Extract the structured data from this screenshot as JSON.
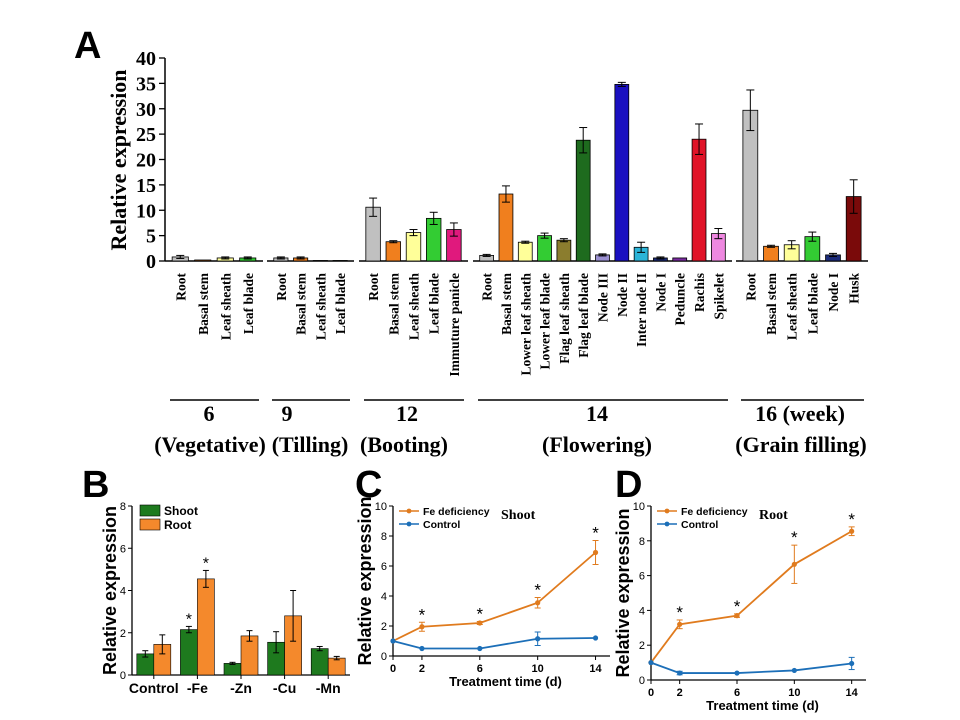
{
  "chart_data": [
    {
      "panel": "A",
      "type": "bar",
      "ylabel": "Relative expression",
      "ylim": [
        0,
        40
      ],
      "yticks": [
        0,
        5,
        10,
        15,
        20,
        25,
        30,
        35,
        40
      ],
      "groups": [
        {
          "label": "6",
          "sublabel": "(Vegetative)",
          "bars": [
            {
              "name": "Root",
              "value": 0.8,
              "err": 0.3,
              "color": "#c0c0c0"
            },
            {
              "name": "Basal stem",
              "value": 0.2,
              "err": 0.1,
              "color": "#f07f1e"
            },
            {
              "name": "Leaf sheath",
              "value": 0.6,
              "err": 0.2,
              "color": "#ffff99"
            },
            {
              "name": "Leaf blade",
              "value": 0.6,
              "err": 0.2,
              "color": "#33cc33"
            }
          ]
        },
        {
          "label": "9",
          "sublabel": "(Tilling)",
          "bars": [
            {
              "name": "Root",
              "value": 0.6,
              "err": 0.2,
              "color": "#c0c0c0"
            },
            {
              "name": "Basal stem",
              "value": 0.6,
              "err": 0.2,
              "color": "#f07f1e"
            },
            {
              "name": "Leaf sheath",
              "value": 0.1,
              "err": 0.05,
              "color": "#ffff99"
            },
            {
              "name": "Leaf blade",
              "value": 0.1,
              "err": 0.05,
              "color": "#33cc33"
            }
          ]
        },
        {
          "label": "12",
          "sublabel": "(Booting)",
          "bars": [
            {
              "name": "Root",
              "value": 10.6,
              "err": 1.8,
              "color": "#c0c0c0"
            },
            {
              "name": "Basal stem",
              "value": 3.8,
              "err": 0.2,
              "color": "#f07f1e"
            },
            {
              "name": "Leaf sheath",
              "value": 5.6,
              "err": 0.6,
              "color": "#ffff99"
            },
            {
              "name": "Leaf blade",
              "value": 8.4,
              "err": 1.2,
              "color": "#33cc33"
            },
            {
              "name": "Immuture panicle",
              "value": 6.2,
              "err": 1.3,
              "color": "#e0197d"
            }
          ]
        },
        {
          "label": "14",
          "sublabel": "(Flowering)",
          "bars": [
            {
              "name": "Root",
              "value": 1.1,
              "err": 0.2,
              "color": "#c0c0c0"
            },
            {
              "name": "Basal stem",
              "value": 13.2,
              "err": 1.6,
              "color": "#f07f1e"
            },
            {
              "name": "Lower leaf sheath",
              "value": 3.7,
              "err": 0.2,
              "color": "#ffff99"
            },
            {
              "name": "Lower leaf blade",
              "value": 5.0,
              "err": 0.5,
              "color": "#33cc33"
            },
            {
              "name": "Flag leaf sheath",
              "value": 4.1,
              "err": 0.3,
              "color": "#8b7d2e"
            },
            {
              "name": "Flag leaf blade",
              "value": 23.8,
              "err": 2.5,
              "color": "#1e6b1e"
            },
            {
              "name": "Node III",
              "value": 1.2,
              "err": 0.2,
              "color": "#9a8fd0"
            },
            {
              "name": "Node II",
              "value": 34.8,
              "err": 0.4,
              "color": "#1a10c0"
            },
            {
              "name": "Inter node II",
              "value": 2.7,
              "err": 1.0,
              "color": "#2bb4d8"
            },
            {
              "name": "Node I",
              "value": 0.6,
              "err": 0.2,
              "color": "#1b2a78"
            },
            {
              "name": "Peduncle",
              "value": 0.6,
              "err": 0.1,
              "color": "#7a2aa0"
            },
            {
              "name": "Rachis",
              "value": 24.0,
              "err": 3.0,
              "color": "#e01428"
            },
            {
              "name": "Spikelet",
              "value": 5.4,
              "err": 1.0,
              "color": "#ee88e0"
            }
          ]
        },
        {
          "label": "16 (week)",
          "sublabel": "(Grain filling)",
          "bars": [
            {
              "name": "Root",
              "value": 29.7,
              "err": 4.0,
              "color": "#c0c0c0"
            },
            {
              "name": "Basal stem",
              "value": 2.9,
              "err": 0.2,
              "color": "#f07f1e"
            },
            {
              "name": "Leaf sheath",
              "value": 3.2,
              "err": 0.8,
              "color": "#ffff99"
            },
            {
              "name": "Leaf blade",
              "value": 4.8,
              "err": 0.9,
              "color": "#33cc33"
            },
            {
              "name": "Node I",
              "value": 1.2,
              "err": 0.3,
              "color": "#1b2a78"
            },
            {
              "name": "Husk",
              "value": 12.7,
              "err": 3.3,
              "color": "#7a0a0a"
            }
          ]
        }
      ]
    },
    {
      "panel": "B",
      "type": "bar",
      "ylabel": "Relative expression",
      "ylim": [
        0,
        8
      ],
      "yticks": [
        0,
        2,
        4,
        6,
        8
      ],
      "categories": [
        "Control",
        "-Fe",
        "-Zn",
        "-Cu",
        "-Mn"
      ],
      "legend": "top-left",
      "series": [
        {
          "name": "Shoot",
          "color": "#1e7a1e",
          "values": [
            1.0,
            2.15,
            0.55,
            1.55,
            1.25
          ],
          "err": [
            0.15,
            0.15,
            0.05,
            0.5,
            0.1
          ],
          "stars": [
            false,
            true,
            false,
            false,
            false
          ]
        },
        {
          "name": "Root",
          "color": "#f4892c",
          "values": [
            1.45,
            4.55,
            1.85,
            2.8,
            0.8
          ],
          "err": [
            0.45,
            0.4,
            0.25,
            1.2,
            0.08
          ],
          "stars": [
            false,
            true,
            false,
            false,
            false
          ]
        }
      ]
    },
    {
      "panel": "C",
      "type": "line",
      "title": "Shoot",
      "xlabel": "Treatment time (d)",
      "ylabel": "Relative expression",
      "x": [
        0,
        2,
        6,
        10,
        14
      ],
      "xlim": [
        0,
        15
      ],
      "xticks": [
        0,
        2,
        6,
        10,
        14
      ],
      "ylim": [
        0,
        10
      ],
      "yticks": [
        0,
        2,
        4,
        6,
        8,
        10
      ],
      "legend": "top-left",
      "series": [
        {
          "name": "Fe deficiency",
          "color": "#e07b1e",
          "values": [
            1.0,
            1.95,
            2.2,
            3.55,
            6.9
          ],
          "err": [
            0.05,
            0.3,
            0.1,
            0.35,
            0.8
          ],
          "stars": [
            false,
            true,
            true,
            true,
            true
          ]
        },
        {
          "name": "Control",
          "color": "#1c6fb8",
          "values": [
            1.0,
            0.5,
            0.5,
            1.15,
            1.2
          ],
          "err": [
            0.05,
            0.05,
            0.05,
            0.45,
            0.05
          ],
          "stars": [
            false,
            false,
            false,
            false,
            false
          ]
        }
      ]
    },
    {
      "panel": "D",
      "type": "line",
      "title": "Root",
      "xlabel": "Treatment time (d)",
      "ylabel": "Relative expression",
      "x": [
        0,
        2,
        6,
        10,
        14
      ],
      "xlim": [
        0,
        15
      ],
      "xticks": [
        0,
        2,
        6,
        10,
        14
      ],
      "ylim": [
        0,
        10
      ],
      "yticks": [
        0,
        2,
        4,
        6,
        8,
        10
      ],
      "legend": "top-left",
      "series": [
        {
          "name": "Fe deficiency",
          "color": "#e07b1e",
          "values": [
            1.0,
            3.2,
            3.7,
            6.65,
            8.55
          ],
          "err": [
            0.05,
            0.25,
            0.1,
            1.1,
            0.25
          ],
          "stars": [
            false,
            true,
            true,
            true,
            true
          ]
        },
        {
          "name": "Control",
          "color": "#1c6fb8",
          "values": [
            1.0,
            0.4,
            0.4,
            0.55,
            0.95
          ],
          "err": [
            0.05,
            0.1,
            0.05,
            0.05,
            0.35
          ],
          "stars": [
            false,
            false,
            false,
            false,
            false
          ]
        }
      ]
    }
  ]
}
